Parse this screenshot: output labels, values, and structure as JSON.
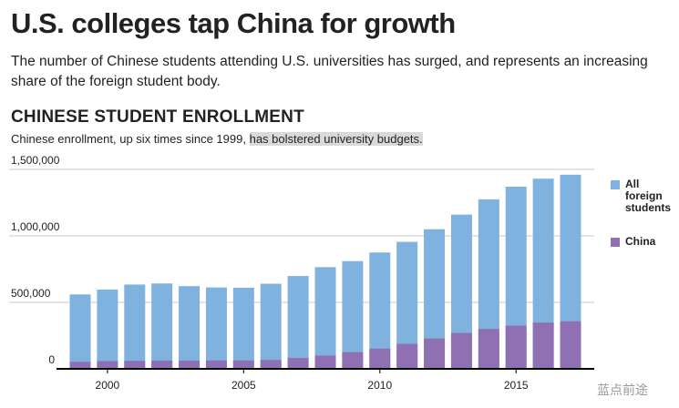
{
  "header": {
    "title": "U.S. colleges tap China for growth",
    "subtitle": "The number of Chinese students attending U.S. universities has surged, and represents an increasing share of the foreign student body."
  },
  "section": {
    "title": "CHINESE STUDENT ENROLLMENT",
    "subtitle_plain": "Chinese enrollment, up six times since 1999,",
    "subtitle_highlight": "has bolstered university budgets."
  },
  "legend": {
    "all_label": "All foreign students",
    "china_label": "China"
  },
  "watermark": "蓝点前途",
  "colors": {
    "all": "#7fb2de",
    "china": "#8f71b3",
    "grid": "#c8c8c8",
    "axis": "#000000"
  },
  "chart_data": {
    "type": "bar",
    "stacking": "overlay",
    "categories": [
      1999,
      2000,
      2001,
      2002,
      2003,
      2004,
      2005,
      2006,
      2007,
      2008,
      2009,
      2010,
      2011,
      2012,
      2013,
      2014,
      2015,
      2016,
      2017
    ],
    "series": [
      {
        "name": "All foreign students",
        "values": [
          560000,
          596000,
          634000,
          642000,
          622000,
          612000,
          610000,
          640000,
          698000,
          765000,
          810000,
          875000,
          955000,
          1050000,
          1160000,
          1275000,
          1370000,
          1430000,
          1460000
        ]
      },
      {
        "name": "China",
        "values": [
          53000,
          58000,
          60000,
          62000,
          62000,
          63000,
          63000,
          67000,
          82000,
          100000,
          125000,
          152000,
          188000,
          228000,
          270000,
          300000,
          325000,
          348000,
          358000
        ]
      }
    ],
    "xticks": [
      2000,
      2005,
      2010,
      2015
    ],
    "yticks": [
      0,
      500000,
      1000000,
      1500000
    ],
    "ytick_labels": [
      "0",
      "500,000",
      "1,000,000",
      "1,500,000"
    ],
    "ylim": [
      0,
      1500000
    ],
    "grid": true,
    "legend_position": "right"
  }
}
